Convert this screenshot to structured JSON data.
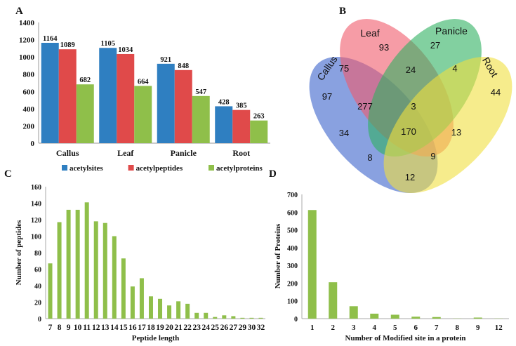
{
  "panel_labels": [
    "A",
    "B",
    "C",
    "D"
  ],
  "chart_data": [
    {
      "panel": "A",
      "type": "bar",
      "categories": [
        "Callus",
        "Leaf",
        "Panicle",
        "Root"
      ],
      "series": [
        {
          "name": "acetylsites",
          "color": "#2f7fc1",
          "values": [
            1164,
            1105,
            921,
            428
          ]
        },
        {
          "name": "acetylpeptides",
          "color": "#e04a4a",
          "values": [
            1089,
            1034,
            848,
            385
          ]
        },
        {
          "name": "acetylproteins",
          "color": "#8fbf4a",
          "values": [
            682,
            664,
            547,
            263
          ]
        }
      ],
      "yticks": [
        0,
        200,
        400,
        600,
        800,
        1000,
        1200,
        1400
      ],
      "ylim": [
        0,
        1400
      ],
      "legend": "bottom",
      "xlabel": "",
      "ylabel": ""
    },
    {
      "panel": "B",
      "type": "venn",
      "sets": [
        {
          "name": "Callus",
          "color": "#4a6fd0"
        },
        {
          "name": "Leaf",
          "color": "#f05a6a"
        },
        {
          "name": "Panicle",
          "color": "#2fb060"
        },
        {
          "name": "Root",
          "color": "#f0e040"
        }
      ],
      "regions": [
        {
          "sets": "Leaf",
          "value": "93"
        },
        {
          "sets": "Panicle",
          "value": "27"
        },
        {
          "sets": "Callus+Leaf",
          "value": "75"
        },
        {
          "sets": "Leaf+Panicle",
          "value": "24"
        },
        {
          "sets": "Panicle+Root",
          "value": "4"
        },
        {
          "sets": "Callus",
          "value": "97"
        },
        {
          "sets": "Callus+Leaf+Panicle",
          "value": "277"
        },
        {
          "sets": "Leaf+Panicle+Root",
          "value": "3"
        },
        {
          "sets": "Root",
          "value": "44"
        },
        {
          "sets": "Callus+Panicle",
          "value": "34"
        },
        {
          "sets": "All",
          "value": "170"
        },
        {
          "sets": "Leaf+Root",
          "value": "13"
        },
        {
          "sets": "Callus+Panicle+Root",
          "value": "8"
        },
        {
          "sets": "Callus+Leaf+Root",
          "value": "9"
        },
        {
          "sets": "Callus+Root",
          "value": "12"
        }
      ]
    },
    {
      "panel": "C",
      "type": "bar",
      "categories": [
        "7",
        "8",
        "9",
        "10",
        "11",
        "12",
        "13",
        "14",
        "15",
        "16",
        "17",
        "18",
        "19",
        "20",
        "21",
        "22",
        "23",
        "24",
        "25",
        "26",
        "27",
        "29",
        "30",
        "32"
      ],
      "values": [
        67,
        117,
        132,
        132,
        141,
        118,
        116,
        100,
        73,
        39,
        49,
        27,
        24,
        16,
        21,
        18,
        7,
        7,
        2,
        4,
        3,
        1,
        1,
        1
      ],
      "color": "#8fbf4a",
      "yticks": [
        0,
        20,
        40,
        60,
        80,
        100,
        120,
        140,
        160
      ],
      "ylim": [
        0,
        160
      ],
      "xlabel": "Peptide length",
      "ylabel": "Number of peptides"
    },
    {
      "panel": "D",
      "type": "bar",
      "categories": [
        "1",
        "2",
        "3",
        "4",
        "5",
        "6",
        "7",
        "8",
        "9",
        "12"
      ],
      "values": [
        612,
        205,
        70,
        28,
        22,
        11,
        9,
        1,
        6,
        1
      ],
      "color": "#8fbf4a",
      "yticks": [
        0,
        100,
        200,
        300,
        400,
        500,
        600,
        700
      ],
      "ylim": [
        0,
        700
      ],
      "xlabel": "Number of Modified site in a protein",
      "ylabel": "Number of Proteins"
    }
  ]
}
